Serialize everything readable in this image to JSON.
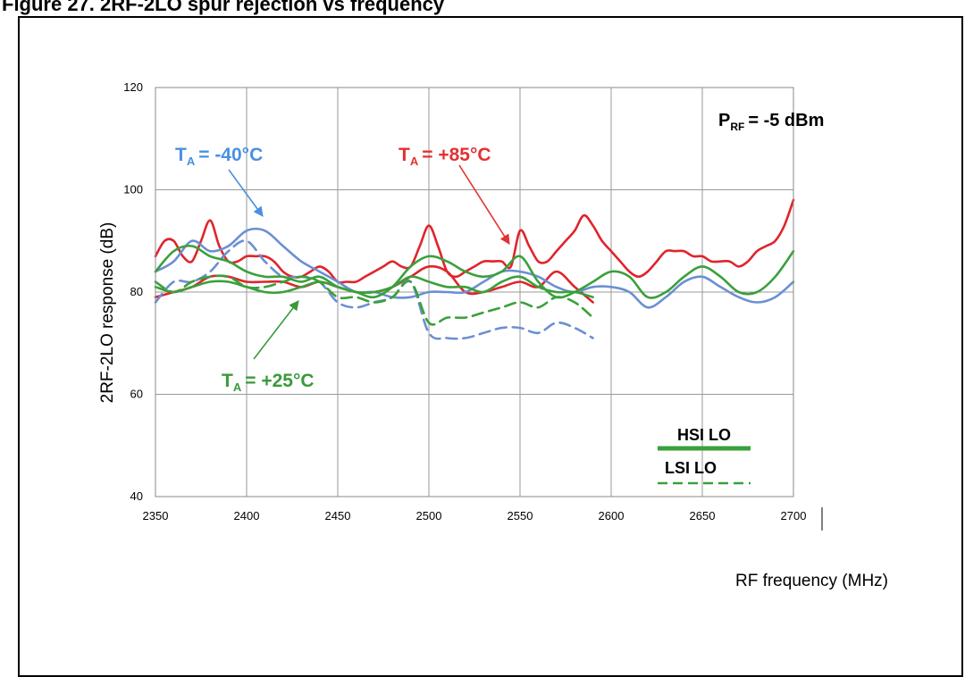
{
  "header": {
    "text": "Figure 27. 2RF-2LO spur rejection vs frequency"
  },
  "chart_data": {
    "type": "line",
    "xlabel": "RF frequency (MHz)",
    "ylabel": "2RF-2LO response (dB)",
    "xlim": [
      2350,
      2700
    ],
    "ylim": [
      40,
      120
    ],
    "x_ticks": [
      "2350",
      "2400",
      "2450",
      "2500",
      "2550",
      "2600",
      "2650",
      "2700"
    ],
    "y_ticks": [
      "40",
      "60",
      "80",
      "100",
      "120"
    ],
    "grid": true,
    "condition": {
      "main": "P",
      "sub": "RF",
      "value": "= -5 dBm"
    },
    "annotations": [
      {
        "prefix": "T",
        "sub": "A",
        "text": "= -40°C",
        "color": "#4a90e2"
      },
      {
        "prefix": "T",
        "sub": "A",
        "text": "= +85°C",
        "color": "#e53030"
      },
      {
        "prefix": "T",
        "sub": "A",
        "text": "= +25°C",
        "color": "#3a9a3a"
      }
    ],
    "legend": {
      "position": "bottom-right",
      "solid_label": "HSI LO",
      "dashed_label": "LSI LO"
    },
    "colors": {
      "blue": "#6a8fd4",
      "red": "#e0242c",
      "green": "#3aa03a"
    },
    "series": [
      {
        "color": "#e0242c",
        "style": "solid",
        "x": [
          2350,
          2355,
          2360,
          2365,
          2370,
          2375,
          2380,
          2385,
          2390,
          2395,
          2400,
          2405,
          2410,
          2415,
          2420,
          2425,
          2430,
          2435,
          2440,
          2445,
          2450,
          2455,
          2460,
          2465,
          2470,
          2475,
          2480,
          2485,
          2490,
          2495,
          2500,
          2505,
          2510,
          2515,
          2520,
          2525,
          2530,
          2535,
          2540,
          2545,
          2550,
          2555,
          2560,
          2565,
          2570,
          2575,
          2580,
          2585,
          2590,
          2595,
          2600,
          2605,
          2610,
          2615,
          2620,
          2625,
          2630,
          2635,
          2640,
          2645,
          2650,
          2655,
          2660,
          2665,
          2670,
          2675,
          2680,
          2685,
          2690,
          2695,
          2700
        ],
        "y": [
          87,
          90,
          90,
          87,
          86,
          90,
          94,
          89,
          86,
          86,
          87,
          87,
          87,
          86,
          84,
          83,
          83,
          84,
          85,
          84,
          82,
          82,
          82,
          83,
          84,
          85,
          86,
          85,
          85,
          89,
          93,
          89,
          84,
          83,
          84,
          85,
          86,
          86,
          86,
          85,
          92,
          89,
          86,
          86,
          88,
          90,
          92,
          95,
          93,
          90,
          88,
          86,
          84,
          83,
          84,
          86,
          88,
          88,
          88,
          87,
          87,
          86,
          86,
          86,
          85,
          86,
          88,
          89,
          90,
          93,
          98
        ]
      },
      {
        "color": "#e0242c",
        "style": "solid",
        "x": [
          2350,
          2360,
          2370,
          2380,
          2390,
          2400,
          2410,
          2420,
          2430,
          2440,
          2450,
          2460,
          2470,
          2480,
          2490,
          2500,
          2510,
          2520,
          2530,
          2540,
          2550,
          2560,
          2570,
          2580,
          2590
        ],
        "y": [
          79,
          80,
          81,
          83,
          83,
          82,
          82,
          82,
          81,
          82,
          81,
          80,
          80,
          81,
          83,
          85,
          84,
          80,
          80,
          81,
          82,
          81,
          84,
          81,
          78
        ]
      },
      {
        "color": "#6a8fd4",
        "style": "solid",
        "x": [
          2350,
          2360,
          2370,
          2380,
          2390,
          2400,
          2410,
          2420,
          2430,
          2440,
          2450,
          2460,
          2470,
          2480,
          2490,
          2500,
          2510,
          2520,
          2530,
          2540,
          2550,
          2560,
          2570,
          2580,
          2590,
          2600,
          2610,
          2620,
          2630,
          2640,
          2650,
          2660,
          2670,
          2680,
          2690,
          2700
        ],
        "y": [
          84,
          86,
          90,
          88,
          89,
          92,
          92,
          89,
          86,
          84,
          82,
          80,
          80,
          79,
          79,
          80,
          80,
          80,
          82,
          84,
          84,
          83,
          81,
          80,
          81,
          81,
          80,
          77,
          79,
          82,
          83,
          81,
          79,
          78,
          79,
          82
        ]
      },
      {
        "color": "#6a8fd4",
        "style": "dashed",
        "x": [
          2350,
          2360,
          2370,
          2380,
          2390,
          2400,
          2410,
          2420,
          2430,
          2440,
          2450,
          2460,
          2470,
          2480,
          2490,
          2500,
          2510,
          2520,
          2530,
          2540,
          2550,
          2560,
          2570,
          2580,
          2590
        ],
        "y": [
          78,
          82,
          82,
          84,
          88,
          90,
          86,
          83,
          83,
          82,
          78,
          77,
          78,
          79,
          82,
          72,
          71,
          71,
          72,
          73,
          73,
          72,
          74,
          73,
          71
        ]
      },
      {
        "color": "#3aa03a",
        "style": "solid",
        "x": [
          2350,
          2360,
          2370,
          2380,
          2390,
          2400,
          2410,
          2420,
          2430,
          2440,
          2450,
          2460,
          2470,
          2480,
          2490,
          2500,
          2510,
          2520,
          2530,
          2540,
          2550,
          2560,
          2570,
          2580,
          2590,
          2600,
          2610,
          2620,
          2630,
          2640,
          2650,
          2660,
          2670,
          2680,
          2690,
          2700
        ],
        "y": [
          84,
          88,
          89,
          87,
          86,
          84,
          83,
          83,
          82,
          83,
          81,
          80,
          79,
          81,
          85,
          87,
          86,
          84,
          83,
          84,
          87,
          82,
          79,
          80,
          82,
          84,
          83,
          79,
          80,
          83,
          85,
          83,
          80,
          80,
          83,
          88
        ]
      },
      {
        "color": "#3aa03a",
        "style": "dashed",
        "x": [
          2350,
          2360,
          2370,
          2380,
          2390,
          2400,
          2410,
          2420,
          2430,
          2440,
          2450,
          2460,
          2470,
          2480,
          2490,
          2500,
          2510,
          2520,
          2530,
          2540,
          2550,
          2560,
          2570,
          2580,
          2590
        ],
        "y": [
          82,
          80,
          82,
          83,
          83,
          81,
          81,
          82,
          83,
          82,
          79,
          79,
          78,
          79,
          82,
          74,
          75,
          75,
          76,
          77,
          78,
          77,
          79,
          78,
          75
        ]
      },
      {
        "color": "#3aa03a",
        "style": "solid",
        "x": [
          2350,
          2360,
          2370,
          2380,
          2390,
          2400,
          2410,
          2420,
          2430,
          2440,
          2450,
          2460,
          2470,
          2480,
          2490,
          2500,
          2510,
          2520,
          2530,
          2540,
          2550,
          2560,
          2570,
          2580,
          2590
        ],
        "y": [
          81,
          80,
          81,
          82,
          82,
          81,
          80,
          80,
          81,
          82,
          81,
          80,
          80,
          81,
          83,
          82,
          81,
          81,
          80,
          82,
          83,
          81,
          80,
          80,
          79
        ]
      }
    ]
  }
}
